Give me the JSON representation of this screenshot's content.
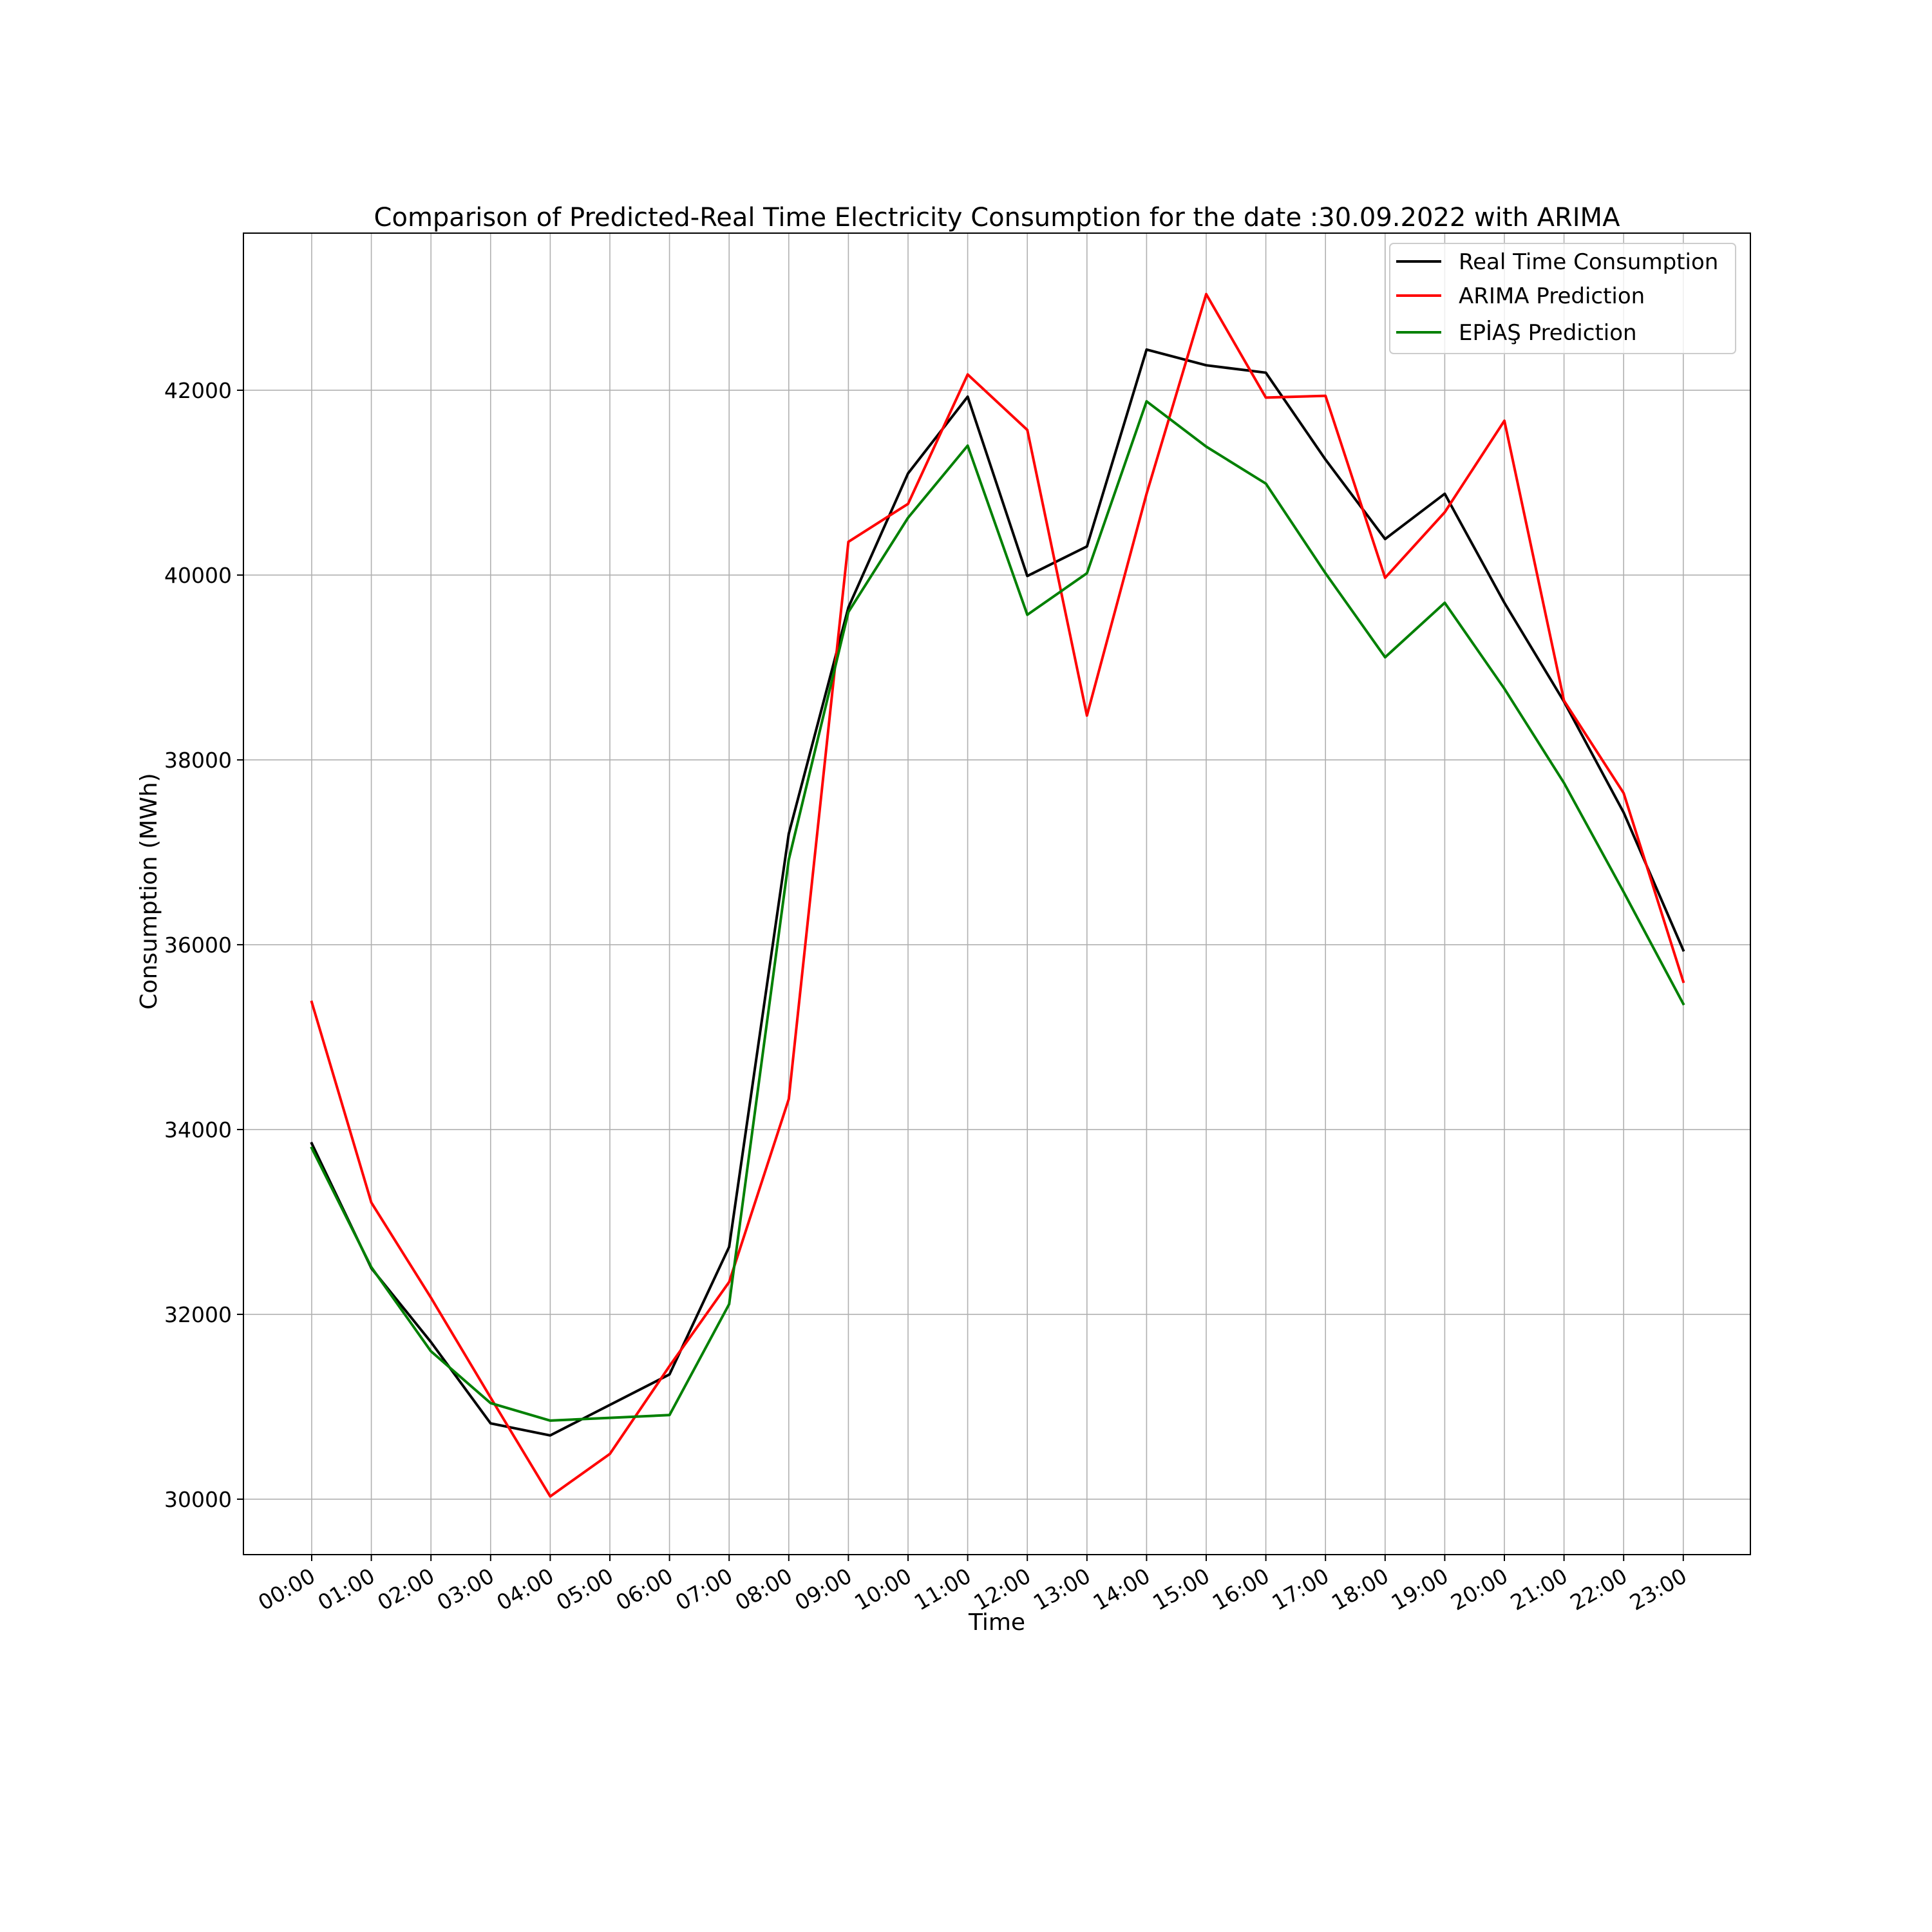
{
  "chart_data": {
    "type": "line",
    "title": "Comparison of Predicted-Real Time Electricity Consumption for the date :30.09.2022 with ARIMA",
    "xlabel": "Time",
    "ylabel": "Consumption (MWh)",
    "categories": [
      "00:00",
      "01:00",
      "02:00",
      "03:00",
      "04:00",
      "05:00",
      "06:00",
      "07:00",
      "08:00",
      "09:00",
      "10:00",
      "11:00",
      "12:00",
      "13:00",
      "14:00",
      "15:00",
      "16:00",
      "17:00",
      "18:00",
      "19:00",
      "20:00",
      "21:00",
      "22:00",
      "23:00"
    ],
    "yticks": [
      "30000",
      "32000",
      "34000",
      "36000",
      "38000",
      "40000",
      "42000"
    ],
    "ylim": [
      29400,
      43700
    ],
    "grid": true,
    "legend_position": "top-right",
    "series": [
      {
        "name": "Real Time Consumption",
        "color": "#000000",
        "values": [
          33850,
          32500,
          31700,
          30820,
          30690,
          31020,
          31350,
          32730,
          37200,
          39650,
          41100,
          41930,
          39990,
          40310,
          42440,
          42270,
          42190,
          41250,
          40390,
          40880,
          39700,
          38630,
          37430,
          35940
        ]
      },
      {
        "name": "ARIMA Prediction",
        "color": "#ff0000",
        "values": [
          35380,
          33210,
          32180,
          31100,
          30030,
          30490,
          31440,
          32350,
          34330,
          40360,
          40770,
          42170,
          41570,
          38480,
          40880,
          43040,
          41920,
          41940,
          39970,
          40680,
          41670,
          38640,
          37640,
          35600
        ]
      },
      {
        "name": "EPİAŞ Prediction",
        "color": "#008000",
        "values": [
          33800,
          32510,
          31600,
          31040,
          30850,
          30880,
          30910,
          32110,
          36920,
          39600,
          40620,
          41400,
          39570,
          40020,
          41880,
          41390,
          40990,
          40020,
          39110,
          39700,
          38770,
          37750,
          36570,
          35360
        ]
      }
    ]
  }
}
